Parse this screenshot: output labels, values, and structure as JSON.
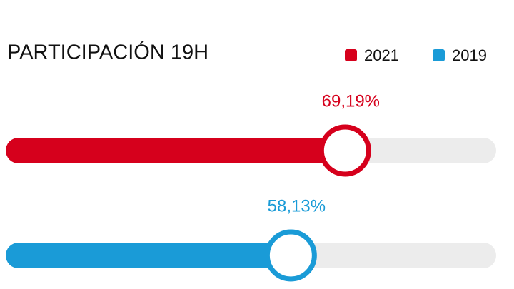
{
  "chart_data": {
    "type": "progress",
    "title": "PARTICIPACIÓN 19H",
    "xlim": [
      0,
      100
    ],
    "track_color": "#ececec",
    "series": [
      {
        "name": "2021",
        "color": "#d6001c",
        "values": [
          69.19
        ],
        "value_labels": [
          "69,19%"
        ]
      },
      {
        "name": "2019",
        "color": "#1a9bd7",
        "values": [
          58.13
        ],
        "value_labels": [
          "58,13%"
        ]
      }
    ]
  }
}
